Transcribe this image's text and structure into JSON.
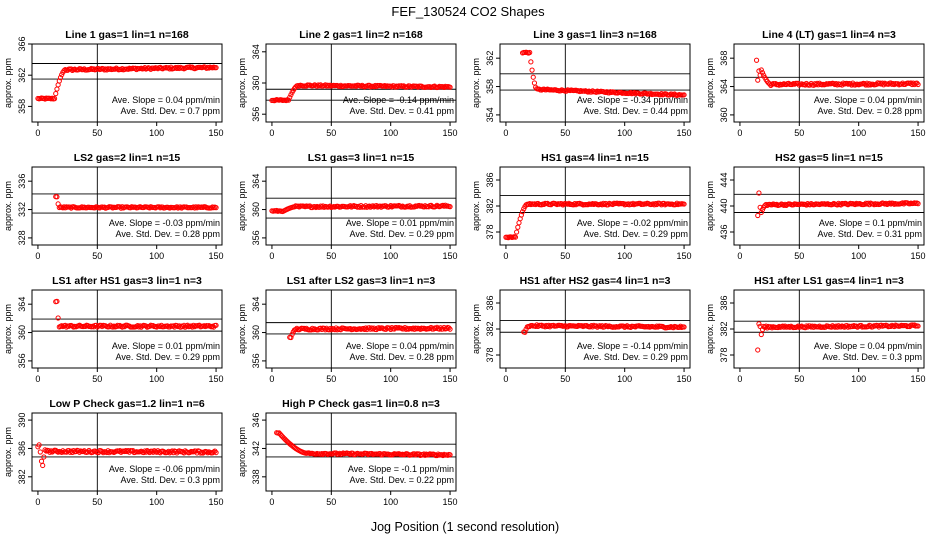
{
  "figure": {
    "title": "FEF_130524  CO2 Shapes",
    "xlabel": "Jog Position (1 second resolution)",
    "ylabel": "approx. ppm",
    "x_ticks": [
      0,
      50,
      100,
      150
    ],
    "xlim": [
      -5,
      155
    ],
    "point_color": "#ff0000",
    "stat_labels": {
      "slope_prefix": "Ave. Slope =",
      "slope_unit": "ppm/min",
      "sd_prefix": "Ave. Std. Dev. =",
      "sd_unit": "ppm"
    }
  },
  "chart_data": [
    {
      "type": "scatter",
      "title": "Line 1 gas=1 lin=1 n=168",
      "ylim": [
        356,
        366
      ],
      "y_ticks": [
        358,
        362,
        366
      ],
      "y_ref": [
        361.5,
        363.5
      ],
      "shape": {
        "start_x": 0,
        "start_y": 359,
        "plateau_y": 362.7,
        "rise_start": 14,
        "rise_end": 23,
        "peak": null,
        "peak_x": null,
        "drift": 0.3,
        "noise": 0.12,
        "spikes": []
      },
      "slope": "0.04",
      "sd": "0.7"
    },
    {
      "type": "scatter",
      "title": "Line 2 gas=1 lin=2 n=168",
      "ylim": [
        355,
        365
      ],
      "y_ticks": [
        356,
        360,
        364
      ],
      "y_ref": [
        357.8,
        359.2
      ],
      "shape": {
        "start_x": 0,
        "start_y": 357.8,
        "plateau_y": 359.7,
        "rise_start": 14,
        "rise_end": 22,
        "peak": null,
        "peak_x": null,
        "drift": -0.2,
        "noise": 0.1,
        "spikes": []
      },
      "slope": "-0.14",
      "sd": "0.41"
    },
    {
      "type": "scatter",
      "title": "Line 3 gas=1 lin=3 n=168",
      "ylim": [
        353,
        364
      ],
      "y_ticks": [
        354,
        358,
        362
      ],
      "y_ref": [
        357.5,
        359.8
      ],
      "shape": {
        "start_x": 14,
        "start_y": 362.8,
        "plateau_y": 357.6,
        "rise_start": 20,
        "rise_end": 26,
        "peak": null,
        "peak_x": null,
        "drift": -0.8,
        "noise": 0.1,
        "spikes": []
      },
      "slope": "-0.34",
      "sd": "0.44"
    },
    {
      "type": "scatter",
      "title": "Line 4 (LT) gas=1 lin=4 n=3",
      "ylim": [
        359,
        370
      ],
      "y_ticks": [
        360,
        364,
        368
      ],
      "y_ref": [
        363.5,
        365.3
      ],
      "shape": {
        "start_x": 14,
        "start_y": 367.7,
        "plateau_y": 364.3,
        "rise_start": 15,
        "rise_end": 26,
        "peak": null,
        "peak_x": null,
        "drift": 0.1,
        "noise": 0.15,
        "spikes": [
          [
            15,
            364.9
          ],
          [
            16,
            366.2
          ],
          [
            17,
            365.6
          ]
        ]
      },
      "slope": "0.04",
      "sd": "0.28"
    },
    {
      "type": "scatter",
      "title": "LS2 gas=2 lin=1 n=15",
      "ylim": [
        327,
        338
      ],
      "y_ticks": [
        328,
        332,
        336
      ],
      "y_ref": [
        331.5,
        334.2
      ],
      "shape": {
        "start_x": 15,
        "start_y": 333.8,
        "plateau_y": 332.3,
        "rise_start": 16,
        "rise_end": 18,
        "peak": null,
        "peak_x": null,
        "drift": 0.0,
        "noise": 0.1,
        "spikes": []
      },
      "slope": "-0.03",
      "sd": "0.28"
    },
    {
      "type": "scatter",
      "title": "LS1 gas=3 lin=1 n=15",
      "ylim": [
        355,
        366
      ],
      "y_ticks": [
        356,
        360,
        364
      ],
      "y_ref": [
        358.8,
        361.6
      ],
      "shape": {
        "start_x": 0,
        "start_y": 359.8,
        "plateau_y": 360.4,
        "rise_start": 10,
        "rise_end": 20,
        "peak": null,
        "peak_x": null,
        "drift": 0.1,
        "noise": 0.13,
        "spikes": []
      },
      "slope": "0.01",
      "sd": "0.29"
    },
    {
      "type": "scatter",
      "title": "HS1 gas=4 lin=1 n=15",
      "ylim": [
        376,
        388
      ],
      "y_ticks": [
        378,
        382,
        386
      ],
      "y_ref": [
        381.0,
        383.6
      ],
      "shape": {
        "start_x": 0,
        "start_y": 377.2,
        "plateau_y": 382.3,
        "rise_start": 8,
        "rise_end": 18,
        "peak": null,
        "peak_x": null,
        "drift": 0.0,
        "noise": 0.13,
        "spikes": []
      },
      "slope": "-0.02",
      "sd": "0.29"
    },
    {
      "type": "scatter",
      "title": "HS2 gas=5 lin=1 n=15",
      "ylim": [
        434,
        446
      ],
      "y_ticks": [
        436,
        440,
        444
      ],
      "y_ref": [
        439.0,
        441.8
      ],
      "shape": {
        "start_x": 15,
        "start_y": 438.5,
        "plateau_y": 440.2,
        "rise_start": 17,
        "rise_end": 22,
        "peak": null,
        "peak_x": null,
        "drift": 0.2,
        "noise": 0.13,
        "spikes": [
          [
            16,
            442.0
          ],
          [
            17,
            439.8
          ]
        ]
      },
      "slope": "0.1",
      "sd": "0.31"
    },
    {
      "type": "scatter",
      "title": "LS1 after HS1 gas=3 lin=1 n=3",
      "ylim": [
        355,
        366
      ],
      "y_ticks": [
        356,
        360,
        364
      ],
      "y_ref": [
        360.2,
        361.9
      ],
      "shape": {
        "start_x": 15,
        "start_y": 364.4,
        "plateau_y": 360.9,
        "rise_start": 16,
        "rise_end": 18,
        "peak": null,
        "peak_x": null,
        "drift": 0.0,
        "noise": 0.14,
        "spikes": []
      },
      "slope": "0.01",
      "sd": "0.29"
    },
    {
      "type": "scatter",
      "title": "LS1 after LS2 gas=3 lin=1 n=3",
      "ylim": [
        355,
        366
      ],
      "y_ticks": [
        356,
        360,
        364
      ],
      "y_ref": [
        359.8,
        361.4
      ],
      "shape": {
        "start_x": 15,
        "start_y": 359.3,
        "plateau_y": 360.5,
        "rise_start": 16,
        "rise_end": 20,
        "peak": null,
        "peak_x": null,
        "drift": 0.1,
        "noise": 0.14,
        "spikes": []
      },
      "slope": "0.04",
      "sd": "0.28"
    },
    {
      "type": "scatter",
      "title": "HS1 after HS2 gas=4 lin=1 n=3",
      "ylim": [
        376,
        388
      ],
      "y_ticks": [
        378,
        382,
        386
      ],
      "y_ref": [
        381.5,
        383.3
      ],
      "shape": {
        "start_x": 15,
        "start_y": 381.5,
        "plateau_y": 382.5,
        "rise_start": 16,
        "rise_end": 19,
        "peak": null,
        "peak_x": null,
        "drift": -0.2,
        "noise": 0.14,
        "spikes": []
      },
      "slope": "-0.14",
      "sd": "0.29"
    },
    {
      "type": "scatter",
      "title": "HS1 after LS1 gas=4 lin=1 n=3",
      "ylim": [
        376,
        388
      ],
      "y_ticks": [
        378,
        382,
        386
      ],
      "y_ref": [
        381.5,
        383.2
      ],
      "shape": {
        "start_x": 15,
        "start_y": 378.8,
        "plateau_y": 382.3,
        "rise_start": 16,
        "rise_end": 20,
        "peak": null,
        "peak_x": null,
        "drift": 0.2,
        "noise": 0.14,
        "spikes": [
          [
            16,
            382.8
          ],
          [
            17,
            382.4
          ]
        ]
      },
      "slope": "0.04",
      "sd": "0.3"
    },
    {
      "type": "scatter",
      "title": "Low P Check gas=1.2 lin=1 n=6",
      "ylim": [
        380,
        391
      ],
      "y_ticks": [
        382,
        386,
        390
      ],
      "y_ref": [
        384.8,
        386.5
      ],
      "shape": {
        "start_x": 0,
        "start_y": 386.3,
        "plateau_y": 385.6,
        "rise_start": 2,
        "rise_end": 8,
        "peak": null,
        "peak_x": null,
        "drift": -0.1,
        "noise": 0.16,
        "spikes": [
          [
            1,
            386.5
          ],
          [
            2,
            385.5
          ],
          [
            3,
            384.2
          ],
          [
            4,
            383.6
          ],
          [
            5,
            384.8
          ],
          [
            6,
            385.8
          ]
        ]
      },
      "slope": "-0.06",
      "sd": "0.3"
    },
    {
      "type": "scatter",
      "title": "High P Check gas=1 lin=0.8 n=3",
      "ylim": [
        336,
        347
      ],
      "y_ticks": [
        338,
        342,
        346
      ],
      "y_ref": [
        340.8,
        342.6
      ],
      "shape": {
        "start_x": 4,
        "start_y": 344.2,
        "plateau_y": 341.3,
        "rise_start": 6,
        "rise_end": 30,
        "peak": null,
        "peak_x": null,
        "drift": -0.2,
        "noise": 0.12,
        "spikes": []
      },
      "slope": "-0.1",
      "sd": "0.22"
    }
  ]
}
